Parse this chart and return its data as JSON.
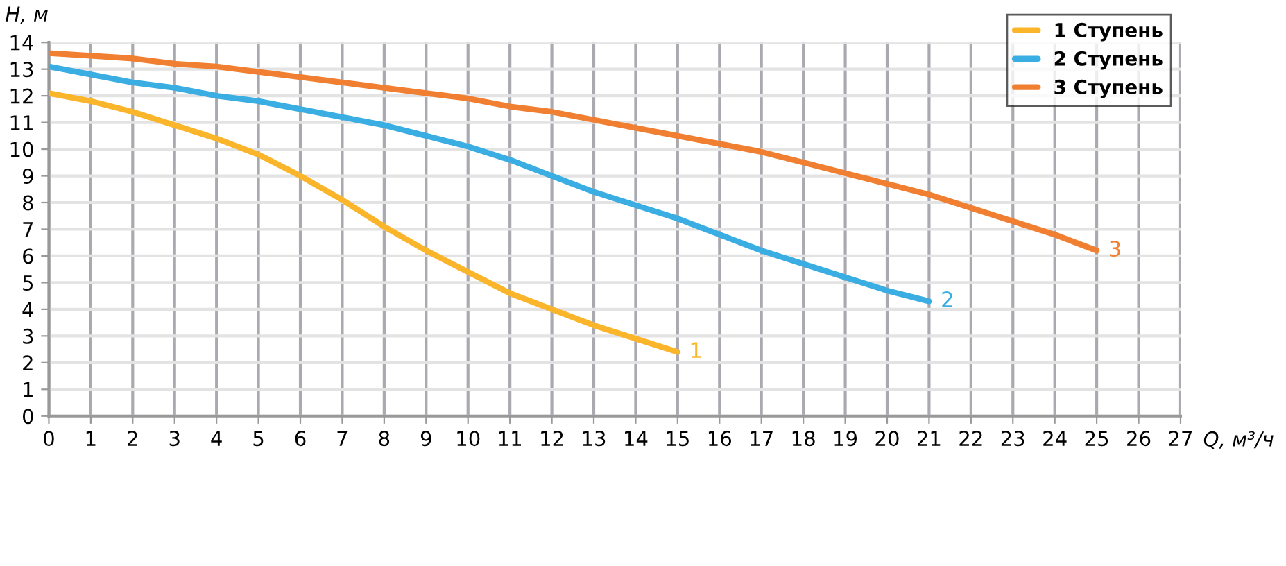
{
  "chart_data": {
    "type": "line",
    "xlabel": "Q, м³/ч",
    "ylabel": "H, м",
    "legend": "top right",
    "grid": true,
    "marker": "none",
    "line_style": "solid",
    "xlim": [
      0,
      27
    ],
    "xticks": [
      0,
      1,
      2,
      3,
      4,
      5,
      6,
      7,
      8,
      9,
      10,
      11,
      12,
      13,
      14,
      15,
      16,
      17,
      18,
      19,
      20,
      21,
      22,
      23,
      24,
      25,
      26,
      27
    ],
    "ylim": [
      0,
      14
    ],
    "yticks": [
      0,
      1,
      2,
      3,
      4,
      5,
      6,
      7,
      8,
      9,
      10,
      11,
      12,
      13,
      14
    ],
    "series": [
      {
        "name": "1 Ступень",
        "color": "#fbb52b",
        "x": [
          0,
          1,
          2,
          3,
          4,
          5,
          6,
          7,
          8,
          9,
          10,
          11,
          12,
          13,
          14,
          15
        ],
        "values": [
          12.1,
          11.8,
          11.4,
          10.9,
          10.4,
          9.8,
          9.0,
          8.1,
          7.1,
          6.2,
          5.4,
          4.6,
          4.0,
          3.4,
          2.9,
          2.4
        ]
      },
      {
        "name": "2 Ступень",
        "color": "#3aaee2",
        "x": [
          0,
          1,
          2,
          3,
          4,
          5,
          6,
          7,
          8,
          9,
          10,
          11,
          12,
          13,
          14,
          15,
          16,
          17,
          18,
          19,
          20,
          21
        ],
        "values": [
          13.1,
          12.8,
          12.5,
          12.3,
          12.0,
          11.8,
          11.5,
          11.2,
          10.9,
          10.5,
          10.1,
          9.6,
          9.0,
          8.4,
          7.9,
          7.4,
          6.8,
          6.2,
          5.7,
          5.2,
          4.7,
          4.3
        ]
      },
      {
        "name": "3 Ступень",
        "color": "#f07f32",
        "x": [
          0,
          1,
          2,
          3,
          4,
          5,
          6,
          7,
          8,
          9,
          10,
          11,
          12,
          13,
          14,
          15,
          16,
          17,
          18,
          19,
          20,
          21,
          22,
          23,
          24,
          25
        ],
        "values": [
          13.6,
          13.5,
          13.4,
          13.2,
          13.1,
          12.9,
          12.7,
          12.5,
          12.3,
          12.1,
          11.9,
          11.6,
          11.4,
          11.1,
          10.8,
          10.5,
          10.2,
          9.9,
          9.5,
          9.1,
          8.7,
          8.3,
          7.8,
          7.3,
          6.8,
          6.2
        ]
      }
    ],
    "annotations": [
      {
        "text": "1",
        "x": 15,
        "y": 2.4
      },
      {
        "text": "2",
        "x": 21,
        "y": 4.3
      },
      {
        "text": "3",
        "x": 25,
        "y": 6.2
      }
    ]
  }
}
